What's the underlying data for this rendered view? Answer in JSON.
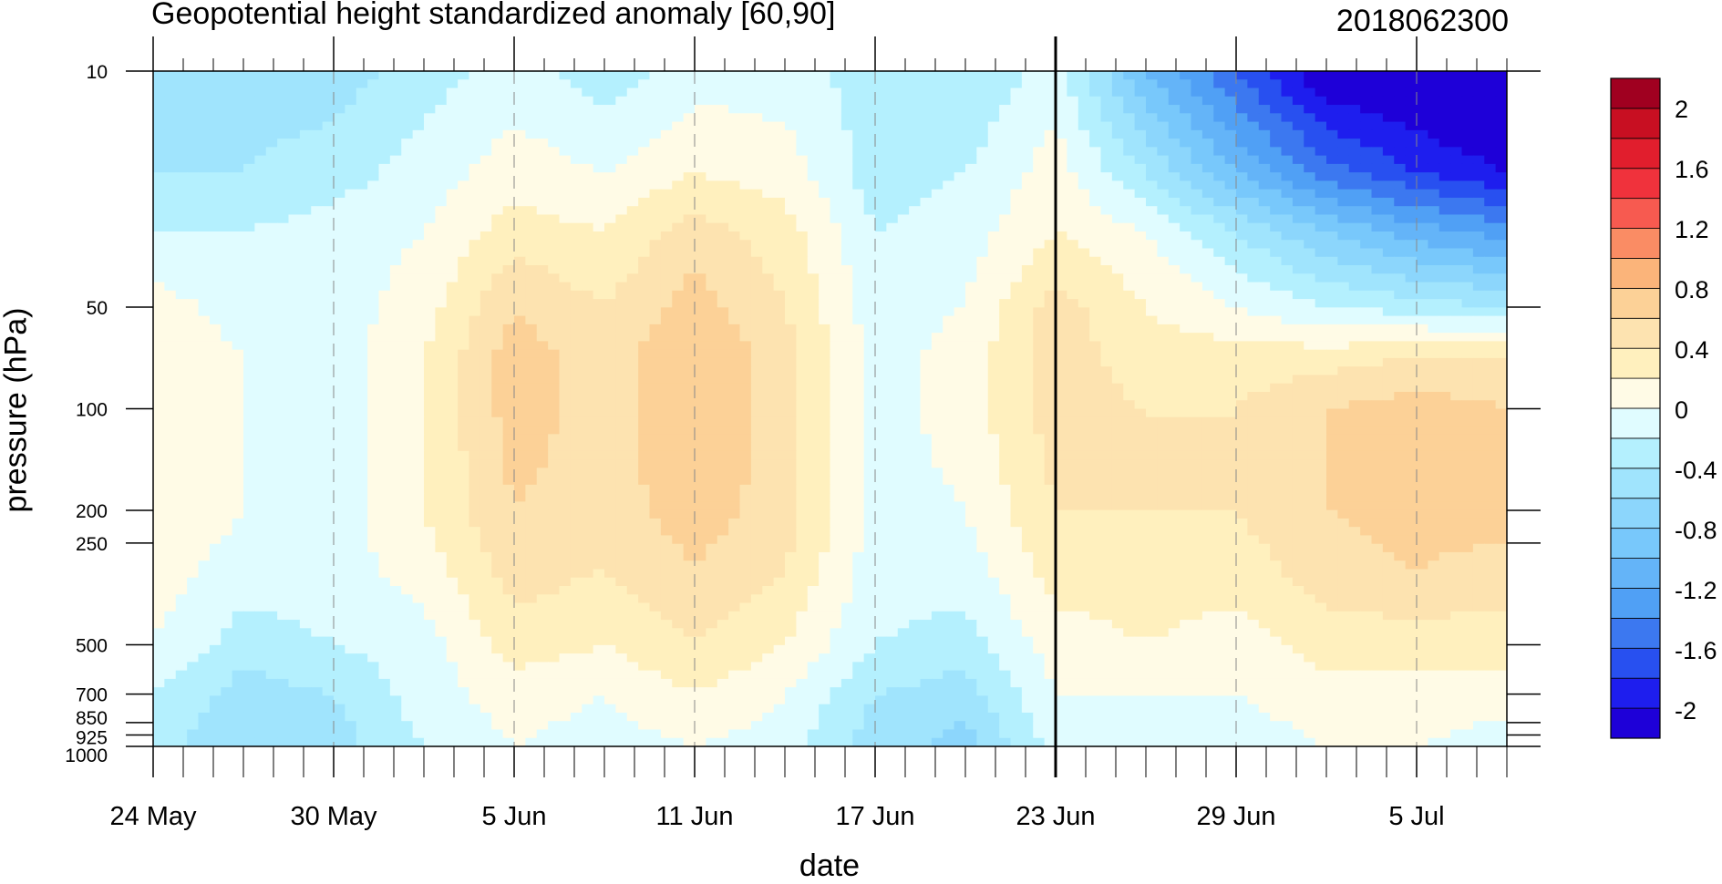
{
  "chart_data": {
    "type": "heatmap",
    "title": "Geopotential height standardized anomaly [60,90]",
    "subtitle": "2018062300",
    "xlabel": "date",
    "ylabel": "pressure (hPa)",
    "x_tick_labels": [
      "24 May",
      "30 May",
      "5 Jun",
      "11 Jun",
      "17 Jun",
      "23 Jun",
      "29 Jun",
      "5 Jul"
    ],
    "y_tick_labels": [
      "10",
      "50",
      "100",
      "200",
      "250",
      "500",
      "700",
      "850",
      "925",
      "1000"
    ],
    "y_scale": "log",
    "ylim": [
      1000,
      10
    ],
    "xlim": [
      "24 May",
      "8 Jul"
    ],
    "forecast_start": "23 Jun",
    "colorbar": {
      "labels": [
        "2",
        "1.6",
        "1.2",
        "0.8",
        "0.4",
        "0",
        "-0.4",
        "-0.8",
        "-1.2",
        "-1.6",
        "-2"
      ],
      "levels": [
        -2.2,
        -2.0,
        -1.8,
        -1.6,
        -1.4,
        -1.2,
        -1.0,
        -0.8,
        -0.6,
        -0.4,
        -0.2,
        0,
        0.2,
        0.4,
        0.6,
        0.8,
        1.0,
        1.2,
        1.4,
        1.6,
        1.8,
        2.0,
        2.2
      ],
      "colors": [
        "#1e00d8",
        "#1e1eee",
        "#2850f0",
        "#3c78f0",
        "#50a0f5",
        "#64b4f8",
        "#78c8fb",
        "#8cd6fc",
        "#a0e4fd",
        "#b4f0fe",
        "#e0fcff",
        "#fffbe6",
        "#fff0be",
        "#fde3b0",
        "#fcd197",
        "#fbb47a",
        "#fa8c64",
        "#f75a50",
        "#f0323c",
        "#e11e2d",
        "#c80f22",
        "#a00020"
      ]
    },
    "z_approx": {
      "pressure_levels": [
        10,
        20,
        30,
        50,
        70,
        100,
        200,
        300,
        500,
        700,
        1000
      ],
      "dates": [
        "24 May",
        "27 May",
        "30 May",
        "2 Jun",
        "5 Jun",
        "8 Jun",
        "11 Jun",
        "14 Jun",
        "17 Jun",
        "20 Jun",
        "23 Jun",
        "26 Jun",
        "29 Jun",
        "2 Jul",
        "5 Jul",
        "8 Jul"
      ],
      "values": [
        [
          -0.5,
          -0.5,
          -0.5,
          -0.3,
          -0.1,
          -0.3,
          -0.1,
          -0.1,
          -0.3,
          -0.4,
          -0.1,
          -1.0,
          -1.6,
          -2.2,
          -2.3,
          -2.4
        ],
        [
          -0.4,
          -0.4,
          -0.3,
          -0.1,
          0.1,
          0.0,
          0.2,
          0.1,
          -0.3,
          -0.2,
          0.1,
          -0.4,
          -1.0,
          -1.5,
          -1.8,
          -2.0
        ],
        [
          -0.2,
          -0.2,
          -0.1,
          0.0,
          0.3,
          0.2,
          0.5,
          0.3,
          -0.2,
          -0.1,
          0.2,
          0.0,
          -0.4,
          -0.8,
          -1.1,
          -1.3
        ],
        [
          0.1,
          -0.1,
          -0.1,
          0.1,
          0.6,
          0.4,
          0.7,
          0.4,
          -0.1,
          0.0,
          0.5,
          0.2,
          0.0,
          -0.2,
          -0.3,
          -0.4
        ],
        [
          0.2,
          0.0,
          -0.1,
          0.2,
          0.7,
          0.5,
          0.8,
          0.5,
          -0.1,
          0.1,
          0.5,
          0.3,
          0.3,
          0.3,
          0.4,
          0.4
        ],
        [
          0.2,
          0.0,
          -0.1,
          0.2,
          0.7,
          0.5,
          0.8,
          0.5,
          -0.1,
          0.1,
          0.5,
          0.4,
          0.4,
          0.6,
          0.7,
          0.6
        ],
        [
          0.2,
          0.0,
          -0.1,
          0.2,
          0.6,
          0.5,
          0.7,
          0.5,
          -0.1,
          0.0,
          0.4,
          0.4,
          0.4,
          0.6,
          0.7,
          0.7
        ],
        [
          0.1,
          -0.1,
          -0.1,
          0.1,
          0.5,
          0.4,
          0.6,
          0.4,
          -0.1,
          -0.1,
          0.3,
          0.3,
          0.3,
          0.5,
          0.6,
          0.5
        ],
        [
          0.0,
          -0.3,
          -0.2,
          -0.1,
          0.3,
          0.2,
          0.4,
          0.2,
          -0.2,
          -0.3,
          0.1,
          0.2,
          0.1,
          0.3,
          0.3,
          0.3
        ],
        [
          -0.2,
          -0.5,
          -0.4,
          -0.1,
          0.1,
          0.0,
          0.2,
          0.0,
          -0.4,
          -0.5,
          0.0,
          0.0,
          0.0,
          0.1,
          0.1,
          0.1
        ],
        [
          -0.3,
          -0.6,
          -0.5,
          -0.2,
          0.0,
          -0.1,
          0.0,
          -0.1,
          -0.5,
          -0.7,
          -0.1,
          -0.2,
          -0.1,
          0.0,
          0.0,
          -0.1
        ]
      ]
    }
  }
}
